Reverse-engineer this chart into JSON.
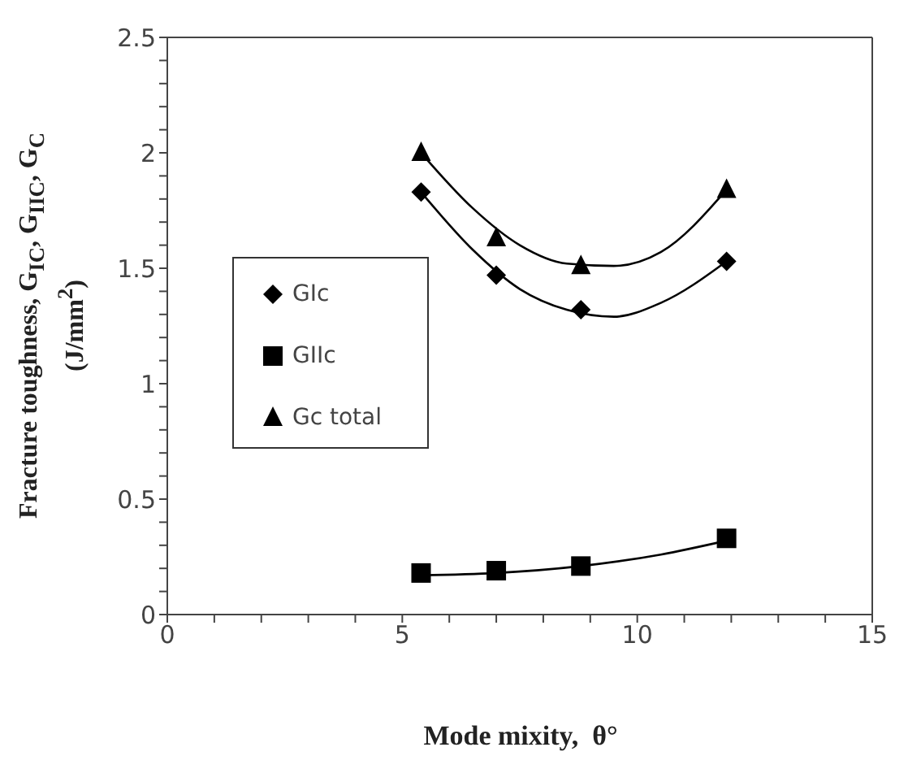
{
  "chart_data": {
    "type": "scatter",
    "xlabel": "Mode mixity,  θ°",
    "ylabel": "Fracture  toughness, G$_{IC}$, G$_{IIC}$, G$_{C}$ (J/mm$^{2}$)",
    "xlim": [
      0,
      15
    ],
    "ylim": [
      0,
      2.5
    ],
    "xticks": [
      0,
      {
        "value": 1,
        "label": null
      },
      {
        "value": 2,
        "label": null
      },
      {
        "value": 3,
        "label": null
      },
      {
        "value": 4,
        "label": null
      },
      5,
      {
        "value": 6,
        "label": null
      },
      {
        "value": 7,
        "label": null
      },
      {
        "value": 8,
        "label": null
      },
      {
        "value": 9,
        "label": null
      },
      10,
      {
        "value": 11,
        "label": null
      },
      {
        "value": 12,
        "label": null
      },
      {
        "value": 13,
        "label": null
      },
      {
        "value": 14,
        "label": null
      },
      15
    ],
    "yticks": [
      0,
      {
        "value": 0.1,
        "label": null
      },
      {
        "value": 0.2,
        "label": null
      },
      {
        "value": 0.3,
        "label": null
      },
      {
        "value": 0.4,
        "label": null
      },
      0.5,
      {
        "value": 0.6,
        "label": null
      },
      {
        "value": 0.7,
        "label": null
      },
      {
        "value": 0.8,
        "label": null
      },
      {
        "value": 0.9,
        "label": null
      },
      1,
      {
        "value": 1.1,
        "label": null
      },
      {
        "value": 1.2,
        "label": null
      },
      {
        "value": 1.3,
        "label": null
      },
      {
        "value": 1.4,
        "label": null
      },
      1.5,
      {
        "value": 1.6,
        "label": null
      },
      {
        "value": 1.7,
        "label": null
      },
      {
        "value": 1.8,
        "label": null
      },
      {
        "value": 1.9,
        "label": null
      },
      2,
      {
        "value": 2.1,
        "label": null
      },
      {
        "value": 2.2,
        "label": null
      },
      {
        "value": 2.3,
        "label": null
      },
      {
        "value": 2.4,
        "label": null
      },
      2.5
    ],
    "grid": false,
    "legend": "left",
    "series": [
      {
        "name": "GIc",
        "marker": "diamond",
        "color": "#000000",
        "x": [
          5.4,
          7.0,
          8.8,
          11.9
        ],
        "values": [
          1.83,
          1.47,
          1.32,
          1.53
        ]
      },
      {
        "name": "GIIc",
        "marker": "square",
        "color": "#000000",
        "x": [
          5.4,
          7.0,
          8.8,
          11.9
        ],
        "values": [
          0.18,
          0.19,
          0.21,
          0.33
        ]
      },
      {
        "name": "Gc total",
        "marker": "triangle",
        "color": "#000000",
        "x": [
          5.4,
          7.0,
          8.8,
          11.9
        ],
        "values": [
          2.0,
          1.63,
          1.51,
          1.84
        ]
      },
      {
        "type": "line",
        "marker": "none",
        "color": "#000000",
        "x": [
          5.4,
          6.5,
          7.5,
          8.5,
          9.5,
          10.5,
          11.9
        ],
        "values": [
          1.83,
          1.58,
          1.41,
          1.32,
          1.29,
          1.35,
          1.53
        ]
      },
      {
        "type": "line",
        "marker": "none",
        "color": "#000000",
        "x": [
          5.4,
          7.0,
          8.8,
          10.5,
          11.9
        ],
        "values": [
          0.17,
          0.18,
          0.21,
          0.26,
          0.32
        ]
      },
      {
        "type": "line",
        "marker": "none",
        "color": "#000000",
        "x": [
          5.4,
          6.5,
          7.5,
          8.5,
          9.5,
          10.5,
          11.9
        ],
        "values": [
          2.0,
          1.76,
          1.6,
          1.52,
          1.51,
          1.57,
          1.84
        ]
      }
    ]
  }
}
